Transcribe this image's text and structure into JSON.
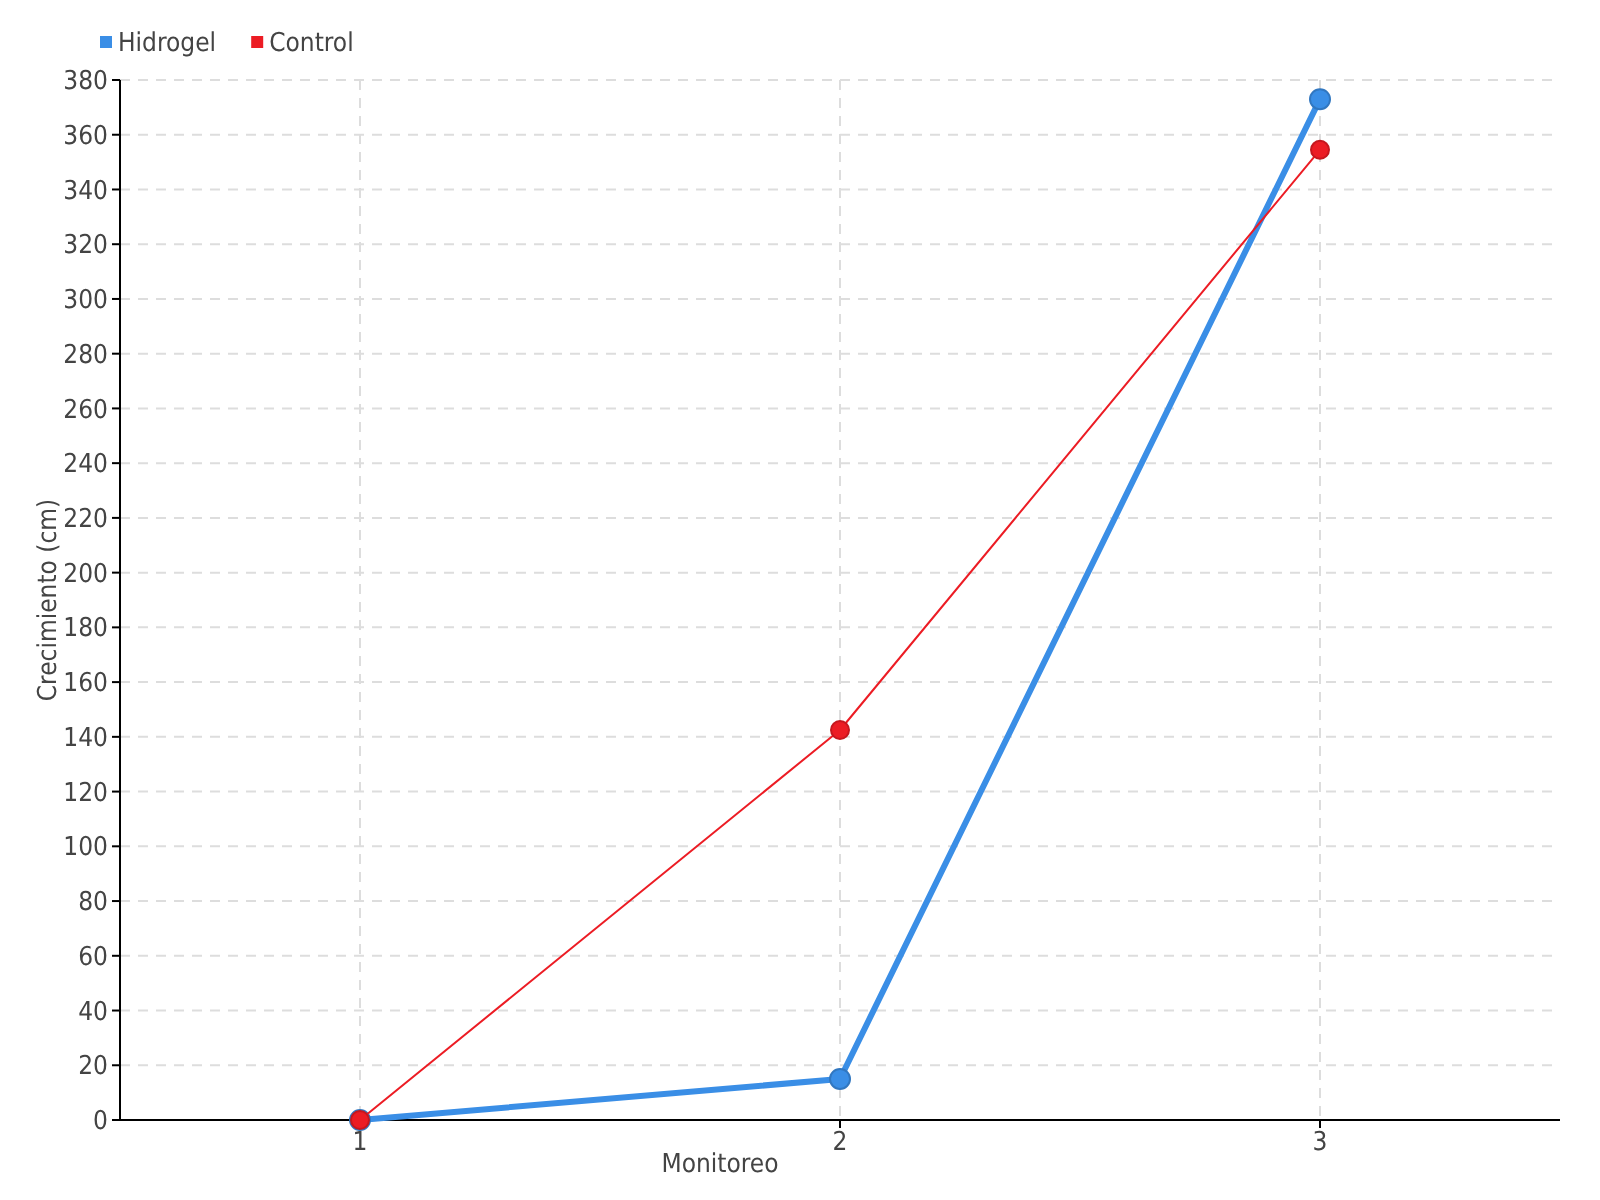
{
  "chart_data": {
    "type": "line",
    "xlabel": "Monitoreo",
    "ylabel": "Crecimiento (cm)",
    "x": [
      1,
      2,
      3
    ],
    "xlim": [
      0.5,
      3.5
    ],
    "xticks": [
      1,
      2,
      3
    ],
    "ylim": [
      0,
      380
    ],
    "yticks": [
      0,
      20,
      40,
      60,
      80,
      100,
      120,
      140,
      160,
      180,
      200,
      220,
      240,
      260,
      280,
      300,
      320,
      340,
      360,
      380
    ],
    "grid": true,
    "legend": "top left",
    "marker": "circle",
    "line_style": "solid",
    "series": [
      {
        "name": "Hidrogel",
        "color": "#3a8ee6",
        "values": [
          0,
          15,
          373
        ]
      },
      {
        "name": "Control",
        "color": "#ec1c24",
        "values": [
          0,
          142.5,
          354.5
        ]
      }
    ]
  }
}
